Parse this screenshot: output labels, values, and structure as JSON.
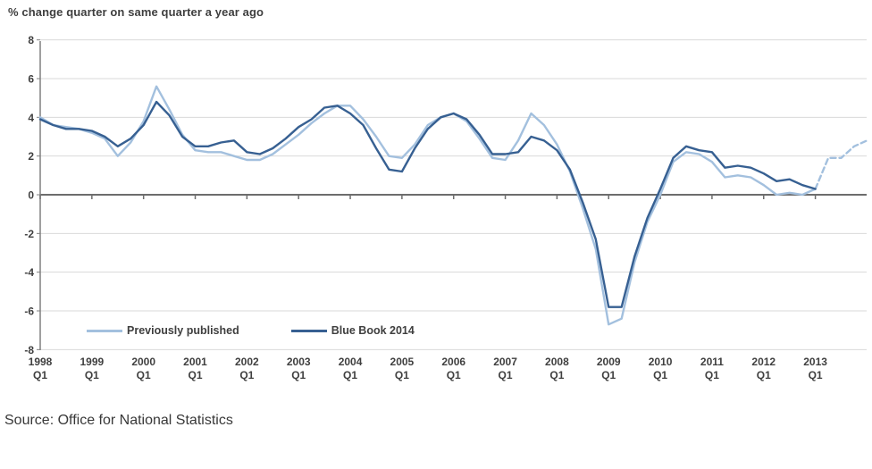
{
  "chart_data": {
    "type": "line",
    "title": "% change quarter on same quarter a year ago",
    "xlabel": "",
    "ylabel": "",
    "frequency": "quarterly",
    "x_start": "1998 Q1",
    "categories": [
      "1998",
      "1999",
      "2000",
      "2001",
      "2002",
      "2003",
      "2004",
      "2005",
      "2006",
      "2007",
      "2008",
      "2009",
      "2010",
      "2011",
      "2012",
      "2013"
    ],
    "x_sub_label": "Q1",
    "yticks": [
      8,
      6,
      4,
      2,
      0,
      -2,
      -4,
      -6,
      -8
    ],
    "ylim": [
      -8,
      8
    ],
    "grid": "horizontal-only",
    "legend_position": "inside-bottom-left",
    "series": [
      {
        "name": "Previously published",
        "color": "#a3c0de",
        "dashed_from_index": 60,
        "style_note": "solid to 2013 Q1, dashed projection after",
        "values": [
          4.0,
          3.6,
          3.5,
          3.4,
          3.2,
          2.9,
          2.0,
          2.7,
          3.8,
          5.6,
          4.4,
          3.1,
          2.3,
          2.2,
          2.2,
          2.0,
          1.8,
          1.8,
          2.1,
          2.6,
          3.1,
          3.7,
          4.2,
          4.6,
          4.6,
          3.9,
          3.0,
          2.0,
          1.9,
          2.6,
          3.6,
          4.0,
          4.2,
          3.8,
          2.9,
          1.9,
          1.8,
          2.8,
          4.2,
          3.6,
          2.6,
          1.2,
          -0.7,
          -2.8,
          -6.7,
          -6.4,
          -3.5,
          -1.4,
          0.0,
          1.7,
          2.2,
          2.1,
          1.7,
          0.9,
          1.0,
          0.9,
          0.5,
          0.0,
          0.1,
          0.0,
          0.3,
          1.9,
          1.9,
          2.5,
          2.8
        ]
      },
      {
        "name": "Blue Book 2014",
        "color": "#376092",
        "dashed_from_index": null,
        "style_note": "solid, ends 2013 Q1",
        "values": [
          3.9,
          3.6,
          3.4,
          3.4,
          3.3,
          3.0,
          2.5,
          2.9,
          3.6,
          4.8,
          4.1,
          3.0,
          2.5,
          2.5,
          2.7,
          2.8,
          2.2,
          2.1,
          2.4,
          2.9,
          3.5,
          3.9,
          4.5,
          4.6,
          4.2,
          3.6,
          2.4,
          1.3,
          1.2,
          2.4,
          3.4,
          4.0,
          4.2,
          3.9,
          3.1,
          2.1,
          2.1,
          2.2,
          3.0,
          2.8,
          2.3,
          1.3,
          -0.4,
          -2.3,
          -5.8,
          -5.8,
          -3.2,
          -1.2,
          0.3,
          1.9,
          2.5,
          2.3,
          2.2,
          1.4,
          1.5,
          1.4,
          1.1,
          0.7,
          0.8,
          0.5,
          0.3
        ]
      }
    ],
    "colors": {
      "grid": "#d9d9d9",
      "axis": "#808080",
      "zero_line": "#6d6d6d",
      "tick_text": "#3f3f3f"
    }
  },
  "legend": {
    "items": [
      {
        "label": "Previously published",
        "color": "#a3c0de"
      },
      {
        "label": "Blue Book 2014",
        "color": "#376092"
      }
    ]
  },
  "footer": {
    "source": "Source: Office for National Statistics"
  }
}
